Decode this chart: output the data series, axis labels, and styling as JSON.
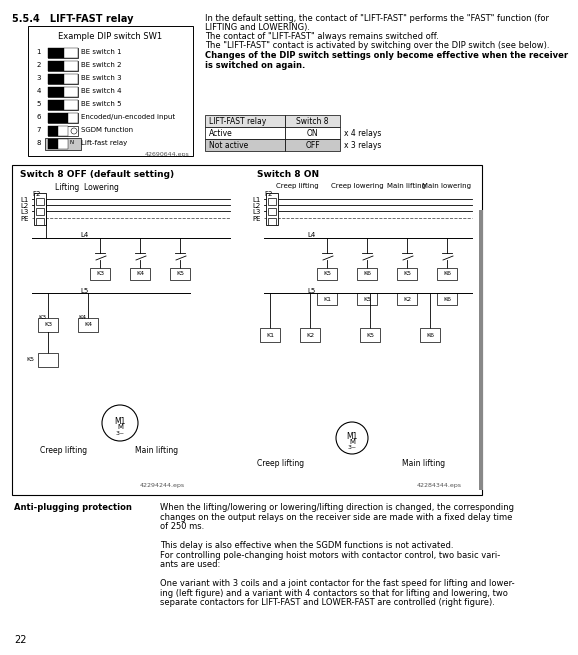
{
  "title_section": "5.5.4   LIFT-FAST relay",
  "bg_color": "#ffffff",
  "box_bg": "#f5f5f5",
  "gray_bg": "#c8c8c8",
  "light_gray": "#e0e0e0",
  "text_color": "#000000",
  "line_color": "#000000",
  "dashed_color": "#555555",
  "page_number": "22",
  "right_text_lines": [
    "In the default setting, the contact of \"LIFT-FAST\" performs the \"FAST\" function (for",
    "LIFTING and LOWERING).",
    "The contact of \"LIFT-FAST\" always remains switched off.",
    "The \"LIFT-FAST\" contact is activated by switching over the DIP switch (see below)."
  ],
  "bold_text": "Changes of the DIP switch settings only become effective when the receiver\nis switched on again.",
  "dip_box_title": "Example DIP switch SW1",
  "dip_switches": [
    {
      "num": "1",
      "label": "BE switch 1"
    },
    {
      "num": "2",
      "label": "BE switch 2"
    },
    {
      "num": "3",
      "label": "BE switch 3"
    },
    {
      "num": "4",
      "label": "BE switch 4"
    },
    {
      "num": "5",
      "label": "BE switch 5"
    },
    {
      "num": "6",
      "label": "Encoded/un-encoded input"
    },
    {
      "num": "7",
      "label": "SGDM function"
    },
    {
      "num": "8",
      "label": "Lift-fast relay"
    }
  ],
  "dip_image_num": "42690644.eps",
  "table_headers": [
    "LIFT-FAST relay",
    "Switch 8",
    ""
  ],
  "table_rows": [
    [
      "Active",
      "ON",
      "x 4 relays"
    ],
    [
      "Not active",
      "OFF",
      "x 3 relays"
    ]
  ],
  "diagram_title_left": "Switch 8 OFF (default setting)",
  "diagram_title_right": "Switch 8 ON",
  "left_labels_top": [
    "Lifting  Lowering"
  ],
  "right_labels_top": [
    "Creep lifting",
    "Creep lowering",
    "Main lifting",
    "Main lowering"
  ],
  "left_diagram_num": "42294244.eps",
  "right_diagram_num": "42284344.eps",
  "anti_plug_title": "Anti-plugging protection",
  "anti_plug_text": [
    "When the lifting/lowering or lowering/lifting direction is changed, the corresponding",
    "changes on the output relays on the receiver side are made with a fixed delay time",
    "of 250 ms.",
    "",
    "This delay is also effective when the SGDM functions is not activated.",
    "For controlling pole-changing hoist motors with contactor control, two basic vari-",
    "ants are used:",
    "",
    "One variant with 3 coils and a joint contactor for the fast speed for lifting and lower-",
    "ing (left figure) and a variant with 4 contactors so that for lifting and lowering, two",
    "separate contactors for LIFT-FAST and LOWER-FAST are controlled (right figure)."
  ]
}
